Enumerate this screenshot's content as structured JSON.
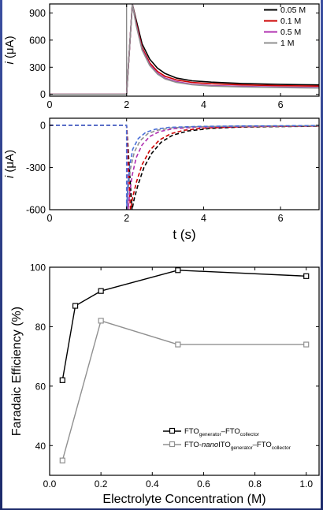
{
  "chart_data": [
    {
      "id": "top",
      "type": "line",
      "ylabel_pre": "i",
      "ylabel_unit": "(μA)",
      "xlabel": "",
      "xlim": [
        0,
        7
      ],
      "ylim": [
        -20,
        1000
      ],
      "xticks": [
        0,
        2,
        4,
        6
      ],
      "yticks": [
        0,
        300,
        600,
        900
      ],
      "vline_x": 2,
      "legend": {
        "placement": "top-right",
        "labels": [
          "0.05 M",
          "0.1 M",
          "0.5 M",
          "1 M"
        ]
      },
      "series": [
        {
          "name": "0.05 M",
          "color": "#000000",
          "x": [
            0,
            2,
            2.15,
            2.25,
            2.4,
            2.6,
            2.8,
            3.0,
            3.3,
            3.7,
            4.2,
            5,
            6,
            7
          ],
          "y": [
            0,
            0,
            1000,
            820,
            560,
            390,
            290,
            230,
            180,
            150,
            135,
            120,
            110,
            105
          ]
        },
        {
          "name": "0.1 M",
          "color": "#cc0000",
          "x": [
            0,
            2,
            2.15,
            2.25,
            2.4,
            2.6,
            2.8,
            3.0,
            3.3,
            3.7,
            4.2,
            5,
            6,
            7
          ],
          "y": [
            0,
            0,
            1000,
            790,
            520,
            350,
            255,
            200,
            160,
            132,
            118,
            105,
            96,
            92
          ]
        },
        {
          "name": "0.5 M",
          "color": "#b030b0",
          "x": [
            0,
            2,
            2.15,
            2.25,
            2.4,
            2.6,
            2.8,
            3.0,
            3.3,
            3.7,
            4.2,
            5,
            6,
            7
          ],
          "y": [
            0,
            0,
            1000,
            770,
            500,
            330,
            235,
            180,
            140,
            112,
            98,
            88,
            80,
            76
          ]
        },
        {
          "name": "1 M",
          "color": "#909090",
          "x": [
            0,
            2,
            2.15,
            2.25,
            2.4,
            2.6,
            2.8,
            3.0,
            3.3,
            3.7,
            4.2,
            5,
            6,
            7
          ],
          "y": [
            0,
            0,
            1000,
            760,
            490,
            320,
            225,
            170,
            132,
            106,
            92,
            82,
            75,
            70
          ]
        }
      ]
    },
    {
      "id": "middle",
      "type": "line",
      "ylabel_pre": "i",
      "ylabel_unit": "(μA)",
      "xlabel": "t (s)",
      "xlim": [
        0,
        7
      ],
      "ylim": [
        -600,
        50
      ],
      "xticks": [
        0,
        2,
        4,
        6
      ],
      "yticks": [
        0,
        -300,
        -600
      ],
      "series": [
        {
          "name": "0.05 M",
          "color": "#000000",
          "dash": true,
          "x": [
            0,
            2.0,
            2.14,
            2.2,
            2.3,
            2.45,
            2.65,
            2.9,
            3.2,
            3.6,
            4.2,
            5,
            7
          ],
          "y": [
            0,
            0,
            -600,
            -520,
            -420,
            -300,
            -200,
            -120,
            -70,
            -40,
            -22,
            -12,
            -6
          ]
        },
        {
          "name": "0.1 M",
          "color": "#cc0000",
          "dash": true,
          "x": [
            0,
            2.0,
            2.1,
            2.16,
            2.26,
            2.4,
            2.6,
            2.85,
            3.15,
            3.5,
            4.0,
            5,
            7
          ],
          "y": [
            0,
            0,
            -600,
            -510,
            -400,
            -280,
            -180,
            -105,
            -60,
            -35,
            -20,
            -10,
            -5
          ]
        },
        {
          "name": "0.5 M",
          "color": "#b030b0",
          "dash": true,
          "x": [
            0,
            2.0,
            2.04,
            2.08,
            2.15,
            2.25,
            2.4,
            2.6,
            2.85,
            3.2,
            3.8,
            5,
            7
          ],
          "y": [
            0,
            0,
            -600,
            -480,
            -350,
            -230,
            -140,
            -80,
            -45,
            -25,
            -14,
            -8,
            -4
          ]
        },
        {
          "name": "1 M",
          "color": "#909090",
          "dash": true,
          "x": [
            0,
            2.0,
            2.01,
            2.04,
            2.1,
            2.2,
            2.35,
            2.55,
            2.8,
            3.2,
            3.8,
            5,
            7
          ],
          "y": [
            0,
            0,
            -600,
            -450,
            -310,
            -190,
            -110,
            -60,
            -35,
            -18,
            -10,
            -6,
            -3
          ]
        },
        {
          "name": "blue",
          "color": "#4a6fd8",
          "dash": true,
          "x": [
            0,
            2.0,
            2.0,
            2.03,
            2.08,
            2.16,
            2.3,
            2.5,
            2.75,
            3.1,
            3.8,
            5,
            7
          ],
          "y": [
            0,
            0,
            -600,
            -430,
            -290,
            -170,
            -95,
            -50,
            -28,
            -15,
            -8,
            -5,
            -2
          ]
        }
      ]
    },
    {
      "id": "bottom",
      "type": "line",
      "ylabel": "Faradaic Efficiency  (%)",
      "xlabel": "Electrolyte Concentration (M)",
      "xlim": [
        0,
        1.05
      ],
      "ylim": [
        30,
        100
      ],
      "xticks": [
        0.0,
        0.2,
        0.4,
        0.6,
        0.8,
        1.0
      ],
      "yticks": [
        40,
        60,
        80,
        100
      ],
      "legend": {
        "placement": "bottom-right"
      },
      "series": [
        {
          "name": "FTO_generator–FTO_collector",
          "color": "#000000",
          "x": [
            0.05,
            0.1,
            0.2,
            0.5,
            1.0
          ],
          "y": [
            62,
            87,
            92,
            99,
            97
          ]
        },
        {
          "name": "FTO-nanoITO_generator–FTO_collector",
          "color": "#909090",
          "x": [
            0.05,
            0.2,
            0.5,
            1.0
          ],
          "y": [
            35,
            82,
            74,
            74
          ]
        }
      ],
      "legend_entries": [
        {
          "prefix": "FTO",
          "sub1": "generator",
          "mid": "–FTO",
          "sub2": "collector",
          "italic": ""
        },
        {
          "prefix": "FTO-",
          "italic": "nano",
          "mid0": "ITO",
          "sub1": "generator",
          "mid": "–FTO",
          "sub2": "collector"
        }
      ]
    }
  ]
}
